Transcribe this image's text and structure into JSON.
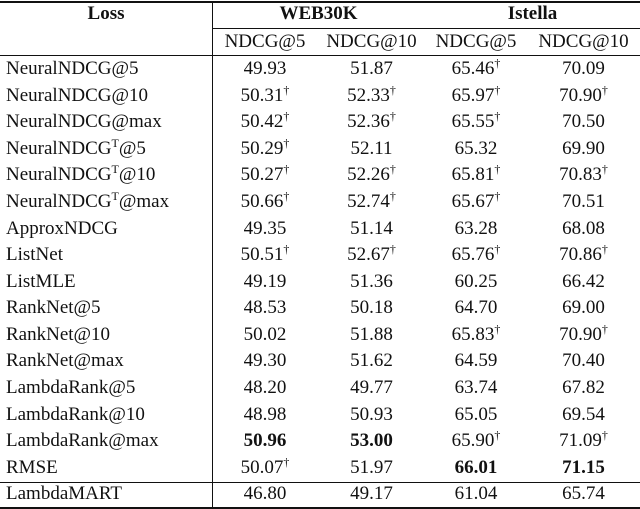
{
  "header": {
    "loss": "Loss",
    "groups": [
      "WEB30K",
      "Istella"
    ],
    "metrics": [
      "NDCG@5",
      "NDCG@10",
      "NDCG@5",
      "NDCG@10"
    ]
  },
  "rows": [
    {
      "loss": {
        "text": "NeuralNDCG@5"
      },
      "cells": [
        {
          "text": "49.93"
        },
        {
          "text": "51.87"
        },
        {
          "text": "65.46",
          "sup": "†"
        },
        {
          "text": "70.09"
        }
      ]
    },
    {
      "loss": {
        "text": "NeuralNDCG@10"
      },
      "cells": [
        {
          "text": "50.31",
          "sup": "†"
        },
        {
          "text": "52.33",
          "sup": "†"
        },
        {
          "text": "65.97",
          "sup": "†"
        },
        {
          "text": "70.90",
          "sup": "†"
        }
      ]
    },
    {
      "loss": {
        "text": "NeuralNDCG@max"
      },
      "cells": [
        {
          "text": "50.42",
          "sup": "†"
        },
        {
          "text": "52.36",
          "sup": "†"
        },
        {
          "text": "65.55",
          "sup": "†"
        },
        {
          "text": "70.50"
        }
      ]
    },
    {
      "loss": {
        "text": "NeuralNDCG",
        "sup": "T",
        "after": "@5"
      },
      "cells": [
        {
          "text": "50.29",
          "sup": "†"
        },
        {
          "text": "52.11"
        },
        {
          "text": "65.32"
        },
        {
          "text": "69.90"
        }
      ]
    },
    {
      "loss": {
        "text": "NeuralNDCG",
        "sup": "T",
        "after": "@10"
      },
      "cells": [
        {
          "text": "50.27",
          "sup": "†"
        },
        {
          "text": "52.26",
          "sup": "†"
        },
        {
          "text": "65.81",
          "sup": "†"
        },
        {
          "text": "70.83",
          "sup": "†"
        }
      ]
    },
    {
      "loss": {
        "text": "NeuralNDCG",
        "sup": "T",
        "after": "@max"
      },
      "cells": [
        {
          "text": "50.66",
          "sup": "†"
        },
        {
          "text": "52.74",
          "sup": "†"
        },
        {
          "text": "65.67",
          "sup": "†"
        },
        {
          "text": "70.51"
        }
      ]
    },
    {
      "loss": {
        "text": "ApproxNDCG"
      },
      "cells": [
        {
          "text": "49.35"
        },
        {
          "text": "51.14"
        },
        {
          "text": "63.28"
        },
        {
          "text": "68.08"
        }
      ]
    },
    {
      "loss": {
        "text": "ListNet"
      },
      "cells": [
        {
          "text": "50.51",
          "sup": "†"
        },
        {
          "text": "52.67",
          "sup": "†"
        },
        {
          "text": "65.76",
          "sup": "†"
        },
        {
          "text": "70.86",
          "sup": "†"
        }
      ]
    },
    {
      "loss": {
        "text": "ListMLE"
      },
      "cells": [
        {
          "text": "49.19"
        },
        {
          "text": "51.36"
        },
        {
          "text": "60.25"
        },
        {
          "text": "66.42"
        }
      ]
    },
    {
      "loss": {
        "text": "RankNet@5"
      },
      "cells": [
        {
          "text": "48.53"
        },
        {
          "text": "50.18"
        },
        {
          "text": "64.70"
        },
        {
          "text": "69.00"
        }
      ]
    },
    {
      "loss": {
        "text": "RankNet@10"
      },
      "cells": [
        {
          "text": "50.02"
        },
        {
          "text": "51.88"
        },
        {
          "text": "65.83",
          "sup": "†"
        },
        {
          "text": "70.90",
          "sup": "†"
        }
      ]
    },
    {
      "loss": {
        "text": "RankNet@max"
      },
      "cells": [
        {
          "text": "49.30"
        },
        {
          "text": "51.62"
        },
        {
          "text": "64.59"
        },
        {
          "text": "70.40"
        }
      ]
    },
    {
      "loss": {
        "text": "LambdaRank@5"
      },
      "cells": [
        {
          "text": "48.20"
        },
        {
          "text": "49.77"
        },
        {
          "text": "63.74"
        },
        {
          "text": "67.82"
        }
      ]
    },
    {
      "loss": {
        "text": "LambdaRank@10"
      },
      "cells": [
        {
          "text": "48.98"
        },
        {
          "text": "50.93"
        },
        {
          "text": "65.05"
        },
        {
          "text": "69.54"
        }
      ]
    },
    {
      "loss": {
        "text": "LambdaRank@max"
      },
      "cells": [
        {
          "text": "50.96",
          "bold": true
        },
        {
          "text": "53.00",
          "bold": true
        },
        {
          "text": "65.90",
          "sup": "†"
        },
        {
          "text": "71.09",
          "sup": "†"
        }
      ]
    },
    {
      "loss": {
        "text": "RMSE"
      },
      "cells": [
        {
          "text": "50.07",
          "sup": "†"
        },
        {
          "text": "51.97"
        },
        {
          "text": "66.01",
          "bold": true
        },
        {
          "text": "71.15",
          "bold": true
        }
      ]
    },
    {
      "loss": {
        "text": "LambdaMART"
      },
      "cells": [
        {
          "text": "46.80"
        },
        {
          "text": "49.17"
        },
        {
          "text": "61.04"
        },
        {
          "text": "65.74"
        }
      ]
    }
  ]
}
